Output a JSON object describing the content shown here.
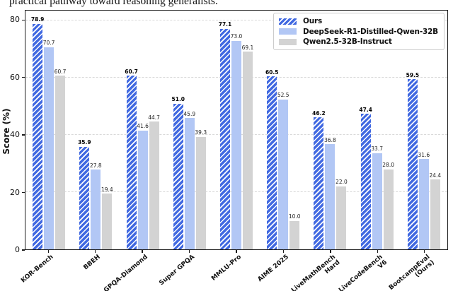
{
  "caption": "practical pathway toward reasoning generalists.",
  "chart_data": {
    "type": "bar",
    "title": "",
    "xlabel": "",
    "ylabel": "Score (%)",
    "ylim": [
      0,
      83.5
    ],
    "yticks": [
      0,
      20,
      40,
      60,
      80
    ],
    "grid": {
      "axis": "y",
      "style": "dashed",
      "color": "#d9d9d9"
    },
    "legend_position": "upper right",
    "categories": [
      "KOR-Bench",
      "BBEH",
      "GPQA-Diamond",
      "Super GPQA",
      "MMLU-Pro",
      "AIME 2025",
      "LiveMathBench\nHard",
      "LiveCodeBench\nV6",
      "BootcampEval\n(Ours)"
    ],
    "series": [
      {
        "name": "Ours",
        "color": "#4169E1",
        "hatch": "///",
        "hatch_color": "#ffffff",
        "values": [
          78.9,
          35.9,
          60.7,
          51.0,
          77.1,
          60.5,
          46.2,
          47.4,
          59.5
        ]
      },
      {
        "name": "DeepSeek-R1-Distilled-Qwen-32B",
        "color": "#B2C7F5",
        "values": [
          70.7,
          27.8,
          41.6,
          45.9,
          73.0,
          52.5,
          36.8,
          33.7,
          31.6
        ]
      },
      {
        "name": "Qwen2.5-32B-Instruct",
        "color": "#D3D3D3",
        "values": [
          60.7,
          19.4,
          44.7,
          39.3,
          69.1,
          10.0,
          22.0,
          28.0,
          24.4
        ]
      }
    ]
  }
}
